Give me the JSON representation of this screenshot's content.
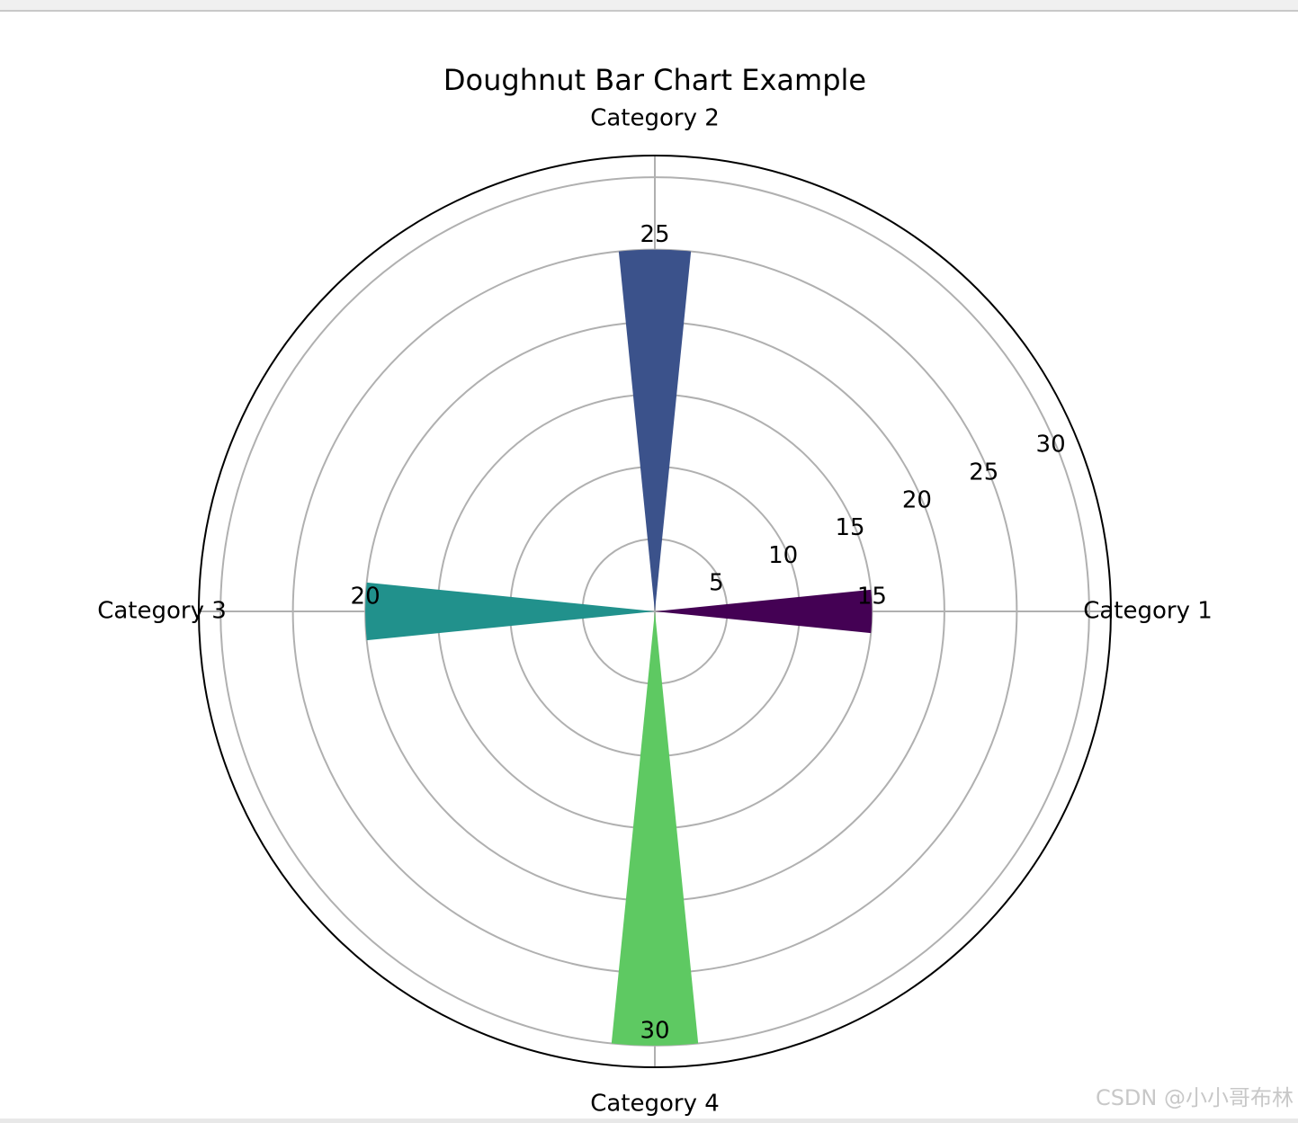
{
  "chart_data": {
    "type": "polar_bar",
    "title": "Doughnut Bar Chart Example",
    "categories": [
      "Category 1",
      "Category 2",
      "Category 3",
      "Category 4"
    ],
    "values": [
      15,
      25,
      20,
      30
    ],
    "colors": [
      "#440154",
      "#3b528b",
      "#21918c",
      "#5ec962"
    ],
    "ylim": [
      0,
      31.5
    ],
    "yticks": [
      5,
      10,
      15,
      20,
      25,
      30
    ],
    "grid": true
  },
  "watermark": "CSDN @小小哥布林"
}
